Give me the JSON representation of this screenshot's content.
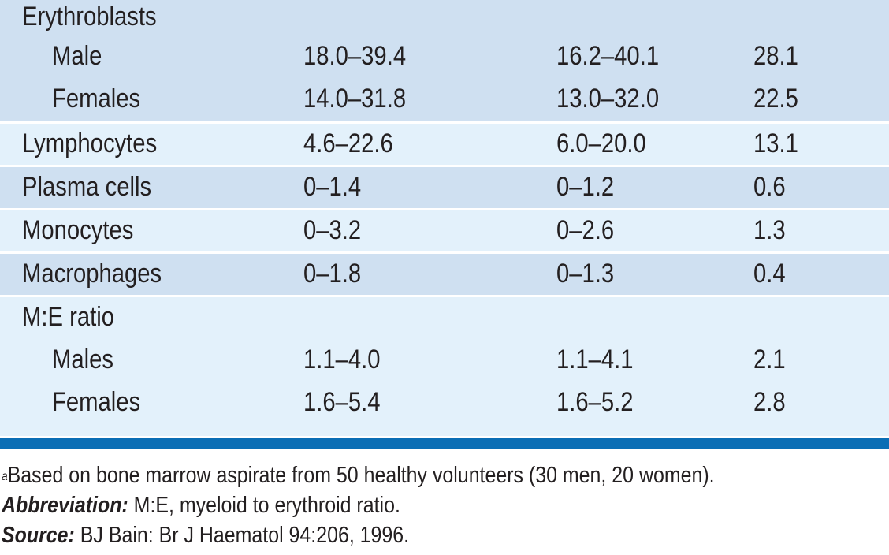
{
  "colors": {
    "band_dark": "#cfe0f1",
    "band_light": "#e3f1fb",
    "rule": "#0b6eb5"
  },
  "table": {
    "erythroblasts": {
      "label": "Erythroblasts",
      "rows": [
        {
          "label": "Male",
          "c1": "18.0–39.4",
          "c2": "16.2–40.1",
          "c3": "28.1"
        },
        {
          "label": "Females",
          "c1": "14.0–31.8",
          "c2": "13.0–32.0",
          "c3": "22.5"
        }
      ]
    },
    "lymphocytes": {
      "label": "Lymphocytes",
      "c1": "4.6–22.6",
      "c2": "6.0–20.0",
      "c3": "13.1"
    },
    "plasma_cells": {
      "label": "Plasma cells",
      "c1": "0–1.4",
      "c2": "0–1.2",
      "c3": "0.6"
    },
    "monocytes": {
      "label": "Monocytes",
      "c1": "0–3.2",
      "c2": "0–2.6",
      "c3": "1.3"
    },
    "macrophages": {
      "label": "Macrophages",
      "c1": "0–1.8",
      "c2": "0–1.3",
      "c3": "0.4"
    },
    "me_ratio": {
      "label": "M:E ratio",
      "rows": [
        {
          "label": "Males",
          "c1": "1.1–4.0",
          "c2": "1.1–4.1",
          "c3": "2.1"
        },
        {
          "label": "Females",
          "c1": "1.6–5.4",
          "c2": "1.6–5.2",
          "c3": "2.8"
        }
      ]
    }
  },
  "notes": {
    "footnote_marker": "a",
    "footnote_text": "Based on bone marrow aspirate from 50 healthy volunteers (30 men, 20 women).",
    "abbreviation_label": "Abbreviation:",
    "abbreviation_text": " M:E, myeloid to erythroid ratio.",
    "source_label": "Source:",
    "source_text": " BJ Bain: Br J Haematol 94:206, 1996."
  }
}
